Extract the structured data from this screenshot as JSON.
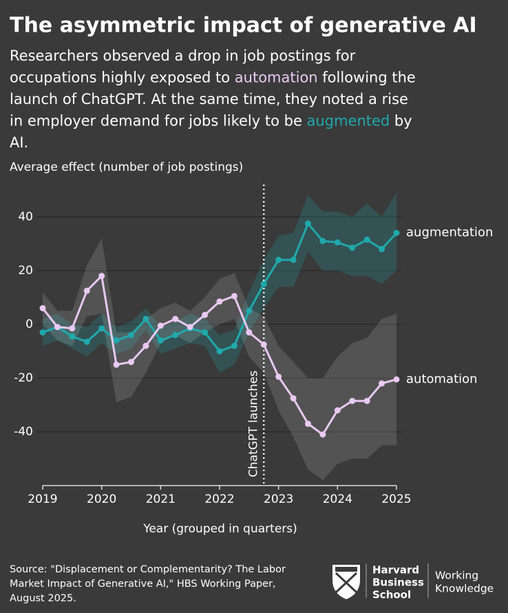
{
  "chart_data": {
    "type": "line",
    "title": "The asymmetric impact of generative AI",
    "subtitle": [
      "Researchers observed a drop in job postings for occupations highly exposed to ",
      "automation",
      " following the launch of ChatGPT. At the same time, they noted a rise in employer demand for jobs likely to be ",
      "augmented",
      " by AI."
    ],
    "y_label": "Average effect (number of job postings)",
    "x_label": "Year (grouped in quarters)",
    "x": [
      2019,
      2019.25,
      2019.5,
      2019.75,
      2020,
      2020.25,
      2020.5,
      2020.75,
      2021,
      2021.25,
      2021.5,
      2021.75,
      2022,
      2022.25,
      2022.5,
      2022.75,
      2023,
      2023.25,
      2023.5,
      2023.75,
      2024,
      2024.25,
      2024.5,
      2024.75,
      2025
    ],
    "xlim": [
      2019,
      2025
    ],
    "xticks": [
      2019,
      2020,
      2021,
      2022,
      2023,
      2024,
      2025
    ],
    "ylim": [
      -60,
      52
    ],
    "yticks": [
      -40,
      -20,
      0,
      20,
      40
    ],
    "grid": true,
    "series": [
      {
        "name": "augmentation",
        "color": "#1fa9ad",
        "band_color": "rgba(31,169,173,0.22)",
        "values": [
          -3,
          -1,
          -4.5,
          -6.5,
          -1.5,
          -6,
          -4,
          2,
          -6,
          -4,
          -1.5,
          -3,
          -10,
          -8,
          5,
          15,
          24,
          24,
          37.5,
          31,
          30.5,
          28.5,
          31.5,
          28,
          34
        ],
        "upper": [
          2,
          4,
          0,
          -1,
          4,
          -1,
          1,
          6,
          -1,
          1,
          4,
          2,
          -4,
          -2,
          12,
          24,
          33,
          34,
          48,
          42,
          42,
          40,
          45,
          40,
          49
        ],
        "lower": [
          -8,
          -6,
          -9,
          -12,
          -7,
          -11,
          -9,
          -2,
          -11,
          -9,
          -7,
          -8,
          -18,
          -15,
          -3,
          6,
          14,
          14,
          27,
          20,
          20,
          18,
          18,
          15,
          20
        ]
      },
      {
        "name": "automation",
        "color": "#e9c9f2",
        "band_color": "rgba(255,255,255,0.13)",
        "values": [
          6,
          -1,
          -1.5,
          12.5,
          18,
          -15,
          -14,
          -8,
          -0.5,
          2,
          -1,
          3.5,
          8.5,
          10.5,
          -3,
          -7.5,
          -19.5,
          -27.5,
          -37,
          -41,
          -32,
          -28.5,
          -28.5,
          -22,
          -20.5
        ],
        "upper": [
          12,
          5,
          5,
          22,
          32,
          -3,
          -3,
          2,
          6,
          8,
          5,
          10,
          17,
          19,
          6,
          3,
          -8,
          -14,
          -20,
          -20,
          -12,
          -7,
          -5,
          2,
          4
        ],
        "lower": [
          0,
          -6,
          -8,
          3,
          4,
          -29,
          -27,
          -18,
          -7,
          -4,
          -7,
          -3,
          0,
          2,
          -12,
          -18,
          -32,
          -42,
          -54,
          -58,
          -52,
          -50,
          -50,
          -45,
          -45
        ]
      }
    ],
    "event": {
      "x": 2022.75,
      "label": "ChatGPT launches"
    },
    "source": [
      "Source: \"Displacement or Complementarity? The Labor",
      "Market Impact of Generative AI,\" HBS Working Paper,",
      "August 2025."
    ]
  },
  "branding": {
    "school": [
      "Harvard",
      "Business",
      "School"
    ],
    "publication": [
      "Working",
      "Knowledge"
    ]
  }
}
